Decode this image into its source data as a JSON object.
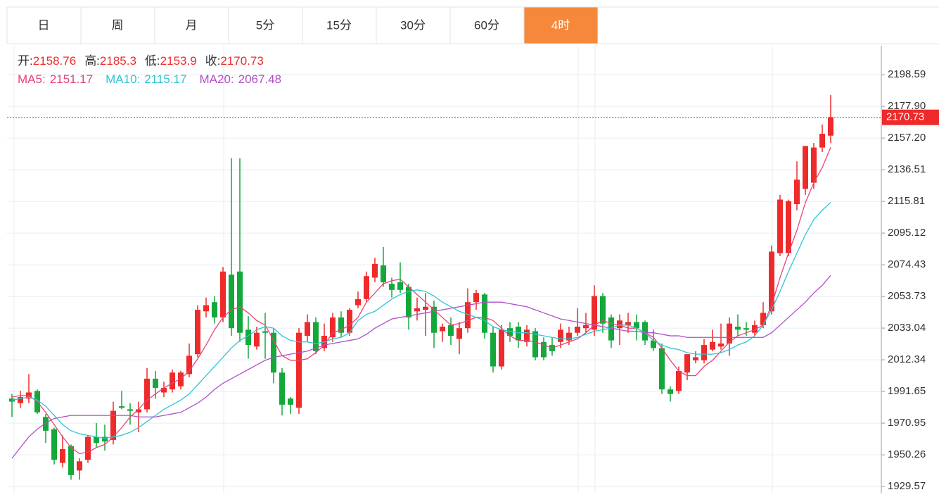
{
  "tabs": [
    "日",
    "周",
    "月",
    "5分",
    "15分",
    "30分",
    "60分",
    "4时"
  ],
  "active_tab": 7,
  "chart_data": {
    "type": "candlestick",
    "ohlc_labels": [
      "开:",
      "高:",
      "低:",
      "收:"
    ],
    "open": [
      1987,
      1984,
      1987,
      1992,
      1975,
      1967,
      1945,
      1956,
      1940,
      1947,
      1962,
      1962,
      1960,
      1982,
      1980,
      1978,
      1980,
      2000,
      1991,
      1993,
      1995,
      2003,
      2016,
      2044,
      2050,
      2040,
      2068,
      2070,
      2032,
      2021,
      2031,
      2030,
      2004,
      1987,
      1981,
      2028,
      2037,
      2020,
      2027,
      2040,
      2030,
      2048,
      2052,
      2066,
      2074,
      2062,
      2063,
      2060,
      2044,
      2045,
      2047,
      2031,
      2035,
      2026,
      2033,
      2050,
      2055,
      2030,
      2008,
      2033,
      2034,
      2024,
      2031,
      2024,
      2022,
      2024,
      2025,
      2030,
      2033,
      2032,
      2054,
      2040,
      2033,
      2035,
      2037,
      2037,
      2025,
      2020,
      1993,
      1992,
      2004,
      2012,
      2012,
      2019,
      2021,
      2023,
      2034,
      2033,
      2030,
      2035,
      2044,
      2082,
      2082,
      2114,
      2124,
      2128,
      2151,
      2158.76
    ],
    "high": [
      1990,
      1992,
      2003,
      1993,
      1977,
      1968,
      1963,
      1957,
      1948,
      1963,
      1971,
      1970,
      1985,
      1992,
      1984,
      1985,
      2007,
      2005,
      1998,
      2006,
      2005,
      2023,
      2048,
      2053,
      2054,
      2073,
      2144,
      2144,
      2041,
      2034,
      2043,
      2033,
      2007,
      1988,
      2033,
      2042,
      2040,
      2036,
      2043,
      2044,
      2046,
      2057,
      2070,
      2079,
      2086,
      2066,
      2076,
      2062,
      2053,
      2056,
      2051,
      2036,
      2040,
      2037,
      2059,
      2058,
      2056,
      2034,
      2035,
      2037,
      2037,
      2035,
      2033,
      2027,
      2027,
      2036,
      2034,
      2046,
      2043,
      2061,
      2056,
      2042,
      2042,
      2043,
      2042,
      2038,
      2032,
      2023,
      1995,
      2008,
      2016,
      2018,
      2026,
      2032,
      2036,
      2040,
      2042,
      2037,
      2038,
      2050,
      2087,
      2120,
      2117,
      2142,
      2152,
      2154,
      2166,
      2185.3
    ],
    "low": [
      1975,
      1981,
      1984,
      1977,
      1958,
      1944,
      1942,
      1934,
      1934,
      1945,
      1955,
      1953,
      1957,
      1980,
      1970,
      1965,
      1978,
      1987,
      1988,
      1991,
      1993,
      2001,
      2014,
      2040,
      2036,
      2037,
      2028,
      2024,
      2013,
      2019,
      2013,
      1997,
      1976,
      1977,
      1977,
      2024,
      2016,
      2018,
      2024,
      2027,
      2028,
      2046,
      2050,
      2063,
      2060,
      2053,
      2056,
      2032,
      2038,
      2028,
      2020,
      2024,
      2022,
      2016,
      2030,
      2045,
      2026,
      2004,
      2006,
      2024,
      2020,
      2021,
      2012,
      2012,
      2015,
      2020,
      2022,
      2028,
      2030,
      2028,
      2030,
      2020,
      2022,
      2030,
      2025,
      2022,
      2018,
      1990,
      1985,
      1990,
      1999,
      2010,
      2010,
      2018,
      2019,
      2015,
      2028,
      2028,
      2028,
      2033,
      2042,
      2080,
      2080,
      2110,
      2120,
      2124,
      2148,
      2153.9
    ],
    "close": [
      1985,
      1988,
      1991,
      1978,
      1966,
      1947,
      1954,
      1937,
      1946,
      1962,
      1958,
      1959,
      1979,
      1981,
      1979,
      1980,
      2000,
      1994,
      1994,
      2004,
      2004,
      2015,
      2045,
      2048,
      2040,
      2070,
      2033,
      2030,
      2022,
      2030,
      2030,
      2004,
      1983,
      1983,
      2030,
      2037,
      2018,
      2028,
      2040,
      2030,
      2045,
      2052,
      2067,
      2075,
      2063,
      2058,
      2058,
      2040,
      2046,
      2047,
      2030,
      2034,
      2028,
      2033,
      2050,
      2056,
      2030,
      2008,
      2032,
      2028,
      2025,
      2032,
      2014,
      2014,
      2018,
      2032,
      2030,
      2034,
      2035,
      2054,
      2036,
      2025,
      2038,
      2037,
      2033,
      2025,
      2020,
      1993,
      1990,
      2005,
      2016,
      2014,
      2022,
      2024,
      2023,
      2036,
      2032,
      2032,
      2035,
      2043,
      2083,
      2117,
      2116,
      2130,
      2152,
      2151,
      2160,
      2170.73
    ],
    "ma": [
      {
        "name": "MA5:",
        "color": "#e8437a",
        "values": [
          1988,
          1989,
          1989,
          1985,
          1978,
          1970,
          1962,
          1955,
          1951,
          1952,
          1955,
          1957,
          1962,
          1968,
          1975,
          1980,
          1986,
          1990,
          1994,
          1997,
          2000,
          2005,
          2013,
          2022,
          2032,
          2040,
          2045,
          2047,
          2043,
          2038,
          2035,
          2025,
          2015,
          2012,
          2012,
          2013,
          2017,
          2022,
          2030,
          2032,
          2035,
          2040,
          2050,
          2056,
          2062,
          2064,
          2065,
          2060,
          2055,
          2050,
          2045,
          2040,
          2035,
          2036,
          2038,
          2040,
          2040,
          2038,
          2033,
          2028,
          2025,
          2025,
          2024,
          2022,
          2020,
          2022,
          2024,
          2026,
          2030,
          2035,
          2038,
          2036,
          2035,
          2033,
          2033,
          2030,
          2027,
          2020,
          2012,
          2005,
          2002,
          2002,
          2008,
          2012,
          2018,
          2024,
          2028,
          2030,
          2032,
          2035,
          2048,
          2066,
          2082,
          2097,
          2115,
          2128,
          2138,
          2151.17
        ]
      },
      {
        "name": "MA10:",
        "color": "#2fc4d3",
        "values": [
          1986,
          1987,
          1988,
          1986,
          1982,
          1976,
          1970,
          1966,
          1964,
          1963,
          1962,
          1961,
          1962,
          1963,
          1965,
          1968,
          1972,
          1976,
          1980,
          1983,
          1986,
          1990,
          1996,
          2002,
          2008,
          2014,
          2020,
          2025,
          2028,
          2032,
          2034,
          2033,
          2028,
          2025,
          2024,
          2024,
          2023,
          2024,
          2026,
          2027,
          2030,
          2038,
          2042,
          2044,
          2048,
          2052,
          2055,
          2057,
          2058,
          2057,
          2054,
          2050,
          2047,
          2044,
          2042,
          2040,
          2038,
          2034,
          2032,
          2031,
          2030,
          2030,
          2029,
          2028,
          2027,
          2026,
          2026,
          2027,
          2029,
          2031,
          2032,
          2033,
          2035,
          2035,
          2033,
          2030,
          2025,
          2022,
          2020,
          2019,
          2017,
          2016,
          2016,
          2016,
          2017,
          2019,
          2022,
          2024,
          2028,
          2035,
          2045,
          2057,
          2070,
          2082,
          2094,
          2104,
          2110,
          2115.17
        ]
      },
      {
        "name": "MA20:",
        "color": "#b04fc8",
        "values": [
          1948,
          1955,
          1962,
          1967,
          1971,
          1974,
          1975,
          1976,
          1976,
          1976,
          1976,
          1976,
          1976,
          1976,
          1976,
          1975,
          1975,
          1975,
          1976,
          1977,
          1978,
          1981,
          1984,
          1988,
          1993,
          1997,
          2000,
          2003,
          2006,
          2009,
          2012,
          2014,
          2015,
          2016,
          2017,
          2018,
          2020,
          2022,
          2023,
          2024,
          2025,
          2026,
          2029,
          2033,
          2036,
          2039,
          2040,
          2041,
          2042,
          2043,
          2044,
          2045,
          2046,
          2047,
          2048,
          2049,
          2050,
          2050,
          2050,
          2049,
          2048,
          2047,
          2045,
          2043,
          2041,
          2039,
          2038,
          2037,
          2036,
          2035,
          2034,
          2033,
          2032,
          2031,
          2031,
          2030,
          2030,
          2029,
          2028,
          2028,
          2027,
          2027,
          2027,
          2027,
          2027,
          2027,
          2027,
          2027,
          2027,
          2027,
          2030,
          2035,
          2040,
          2045,
          2050,
          2056,
          2061,
          2067.48
        ]
      }
    ],
    "up_color": "#ee2a2a",
    "down_color": "#14a83b",
    "ylim": [
      1925,
      2217.5
    ],
    "yticks": [
      2198.59,
      {
        "value": 2177.9,
        "label": "2177.90"
      },
      {
        "value": 2157.2,
        "label": "2157.20"
      },
      2136.51,
      2115.81,
      2095.12,
      2074.43,
      2053.73,
      2033.04,
      2012.34,
      1991.65,
      1970.95,
      1950.26,
      1929.57
    ],
    "grid": true
  }
}
